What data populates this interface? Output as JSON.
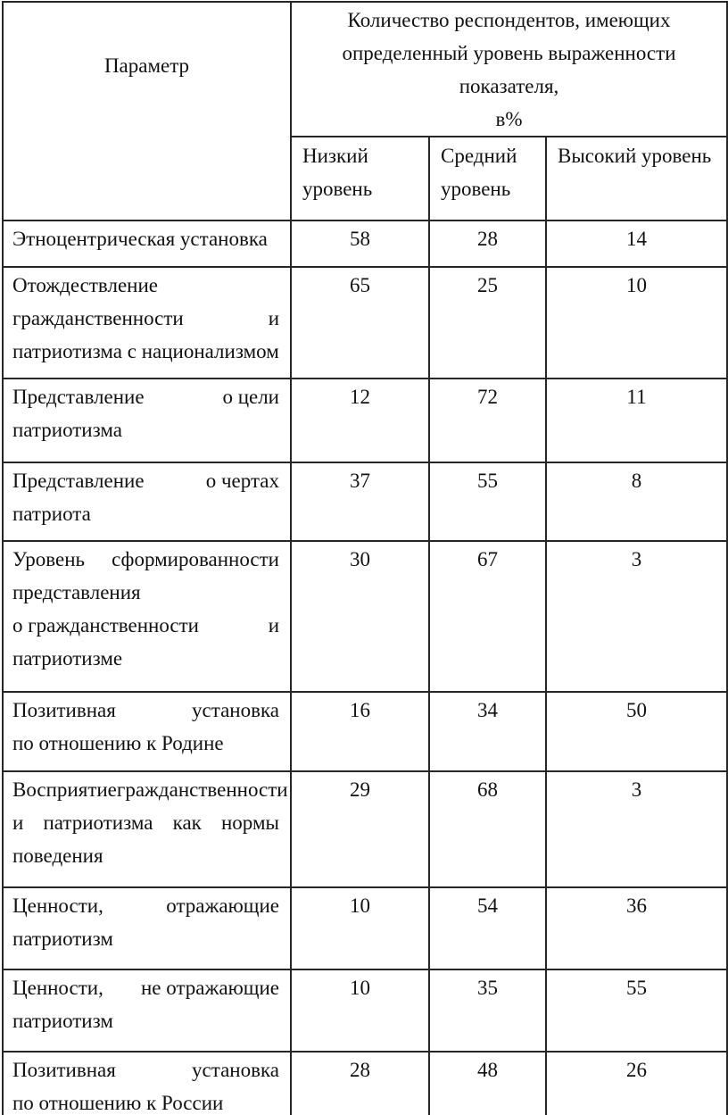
{
  "page": {
    "background": "#ffffff",
    "border_color": "#262626",
    "text_color": "#111111"
  },
  "table": {
    "header": {
      "parameter_label": "Параметр",
      "group_label": "Количество респондентов, имеющих\nопределенный уровень выраженности показателя,\nв%",
      "level_columns": [
        "Низкий\nуровень",
        "Средний\nуровень",
        "Высокий уровень"
      ]
    },
    "rows": [
      {
        "parameter_lines": [
          "Этноцентрическая установка"
        ],
        "values": [
          "58",
          "28",
          "14"
        ]
      },
      {
        "parameter_lines": [
          "Отождествление",
          "гражданственности и",
          "патриотизма с национализмом"
        ],
        "values": [
          "65",
          "25",
          "10"
        ]
      },
      {
        "parameter_lines": [
          "Представление о цели",
          "патриотизма"
        ],
        "values": [
          "12",
          "72",
          "11"
        ]
      },
      {
        "parameter_lines": [
          "Представление о чертах",
          "патриота"
        ],
        "values": [
          "37",
          "55",
          "8"
        ]
      },
      {
        "parameter_lines": [
          "Уровень сформированности",
          "представления",
          "о гражданственности и",
          "патриотизме"
        ],
        "values": [
          "30",
          "67",
          "3"
        ]
      },
      {
        "parameter_lines": [
          "Позитивная установка",
          "по отношению к Родине"
        ],
        "values": [
          "16",
          "34",
          "50"
        ]
      },
      {
        "parameter_lines": [
          "Восприятие гражданственности",
          "и патриотизма как нормы",
          "поведения"
        ],
        "values": [
          "29",
          "68",
          "3"
        ]
      },
      {
        "parameter_lines": [
          "Ценности, отражающие",
          "патриотизм"
        ],
        "values": [
          "10",
          "54",
          "36"
        ]
      },
      {
        "parameter_lines": [
          "Ценности, не отражающие",
          "патриотизм"
        ],
        "values": [
          "10",
          "35",
          "55"
        ]
      },
      {
        "parameter_lines": [
          "Позитивная установка",
          "по отношению к России"
        ],
        "values": [
          "28",
          "48",
          "26"
        ]
      }
    ]
  }
}
